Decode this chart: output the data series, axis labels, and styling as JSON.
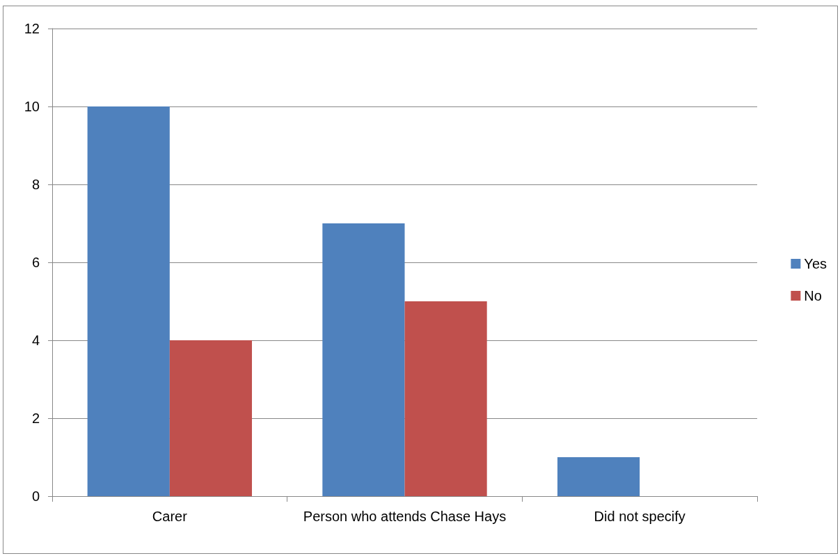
{
  "chart_data": {
    "type": "bar",
    "categories": [
      "Carer",
      "Person who attends Chase Hays",
      "Did not specify"
    ],
    "series": [
      {
        "name": "Yes",
        "color": "#4f81bd",
        "values": [
          10,
          7,
          1
        ]
      },
      {
        "name": "No",
        "color": "#c0504d",
        "values": [
          4,
          5,
          0
        ]
      }
    ],
    "ylim": [
      0,
      12
    ],
    "yticks": [
      0,
      2,
      4,
      6,
      8,
      10,
      12
    ],
    "grid": "y",
    "legend": "right"
  }
}
